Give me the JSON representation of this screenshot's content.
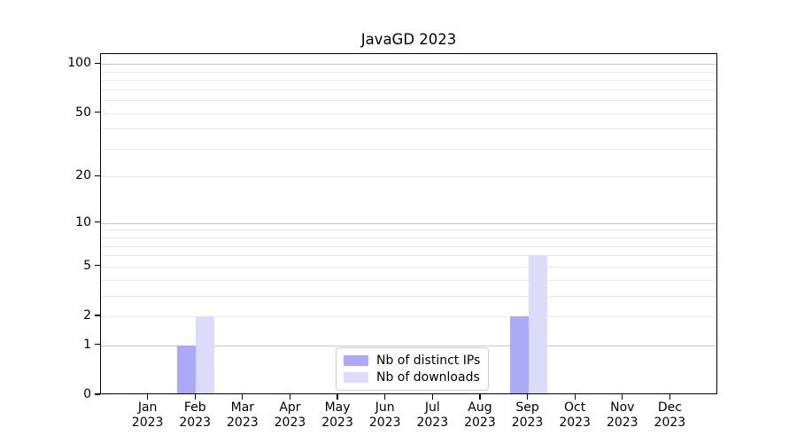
{
  "chart_data": {
    "type": "bar",
    "title": "JavaGD 2023",
    "categories": [
      "Jan 2023",
      "Feb 2023",
      "Mar 2023",
      "Apr 2023",
      "May 2023",
      "Jun 2023",
      "Jul 2023",
      "Aug 2023",
      "Sep 2023",
      "Oct 2023",
      "Nov 2023",
      "Dec 2023"
    ],
    "series": [
      {
        "name": "Nb of distinct IPs",
        "color": "#aaaaf7",
        "values": [
          0,
          1,
          0,
          0,
          0,
          0,
          0,
          0,
          2,
          0,
          0,
          0
        ]
      },
      {
        "name": "Nb of downloads",
        "color": "#dcdcfa",
        "values": [
          0,
          2,
          0,
          0,
          0,
          0,
          0,
          0,
          6,
          0,
          0,
          0
        ]
      }
    ],
    "xlabel": "",
    "ylabel": "",
    "yscale": "log1p",
    "ylim": [
      0,
      100
    ],
    "y_ticks": [
      0,
      1,
      2,
      5,
      10,
      20,
      50,
      100
    ],
    "minor_gridline_values": [
      2,
      3,
      4,
      5,
      6,
      7,
      8,
      9,
      20,
      30,
      40,
      50,
      60,
      70,
      80,
      90
    ],
    "major_gridline_values": [
      1,
      10,
      100
    ],
    "grid": "horizontal",
    "legend_position": "lower center",
    "colors": {
      "spine": "#000000",
      "text": "#000000",
      "major_grid": "#c6c6c6",
      "minor_grid": "#e8e8e8",
      "background": "#ffffff"
    }
  }
}
